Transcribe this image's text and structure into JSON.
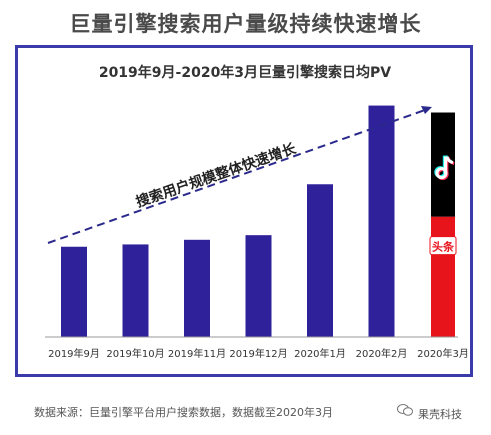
{
  "header": {
    "title": "巨量引擎搜索用户量级持续快速增长"
  },
  "chart_data": {
    "type": "bar",
    "title": "2019年9月-2020年3月巨量引擎搜索日均PV",
    "categories": [
      "2019年9月",
      "2019年10月",
      "2019年11月",
      "2019年12月",
      "2020年1月",
      "2020年2月",
      "2020年3月"
    ],
    "values": [
      39,
      40,
      42,
      44,
      66,
      100,
      97
    ],
    "stacked_last": {
      "top": 45,
      "bottom": 52
    },
    "ylim": [
      0,
      105
    ],
    "annotation": "搜索用户规模整体快速增长",
    "colors": {
      "bar": "#2e219a",
      "douyin": "#000000",
      "toutiao": "#e8141c",
      "trend": "#2b2a8c"
    },
    "icons": [
      "douyin-logo",
      "toutiao-logo"
    ],
    "toutiao_label": "头条"
  },
  "footer": {
    "source": "数据来源：巨量引擎平台用户搜索数据，数据截至2020年3月"
  },
  "watermark": {
    "text": "果壳科技"
  }
}
